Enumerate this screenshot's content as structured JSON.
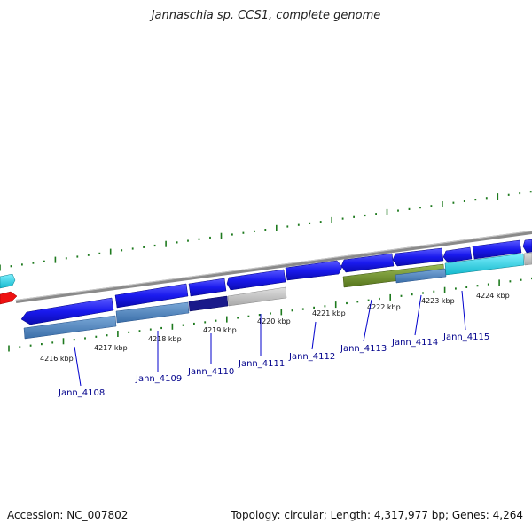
{
  "title": "Jannaschia sp. CCS1, complete genome",
  "footer": {
    "accession": "Accession: NC_007802",
    "summary": "Topology: circular; Length: 4,317,977 bp; Genes: 4,264"
  },
  "colors": {
    "forward_gene": "#1a1aee",
    "highlight_gene": "#3a7cc4",
    "cyan_gene": "#1ccbe0",
    "olive_gene": "#6b8e23",
    "gray_gene": "#bdbdbd",
    "red_gene": "#ee1111",
    "tick": "#1e7a1e",
    "label": "#00008b"
  },
  "ruler": {
    "labels": [
      "4216 kbp",
      "4217 kbp",
      "4218 kbp",
      "4219 kbp",
      "4220 kbp",
      "4221 kbp",
      "4222 kbp",
      "4223 kbp",
      "4224 kbp"
    ]
  },
  "genes": [
    {
      "name": "Jann_4108"
    },
    {
      "name": "Jann_4109"
    },
    {
      "name": "Jann_4110"
    },
    {
      "name": "Jann_4111"
    },
    {
      "name": "Jann_4112"
    },
    {
      "name": "Jann_4113"
    },
    {
      "name": "Jann_4114"
    },
    {
      "name": "Jann_4115"
    }
  ]
}
